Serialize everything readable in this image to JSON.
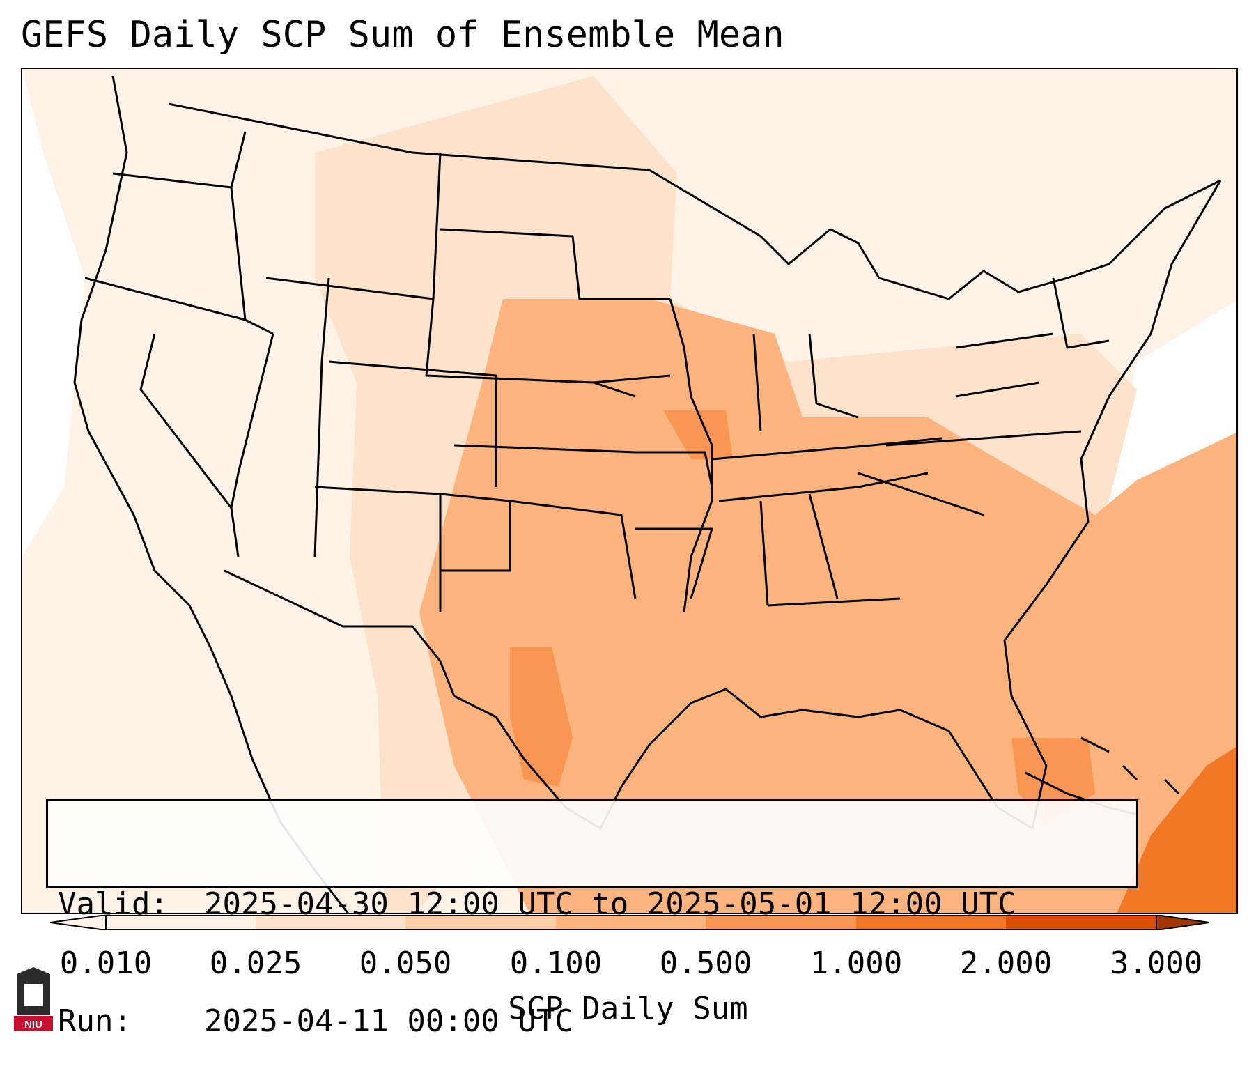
{
  "title": "GEFS Daily SCP Sum of Ensemble Mean",
  "valid_box": {
    "valid_key": "Valid:",
    "valid_value": "2025-04-30 12:00 UTC to 2025-05-01 12:00 UTC",
    "run_key": "Run:",
    "run_value": "2025-04-11 00:00 UTC"
  },
  "colorbar": {
    "title": "SCP Daily Sum",
    "tick_labels": [
      "0.010",
      "0.025",
      "0.050",
      "0.100",
      "0.500",
      "1.000",
      "2.000",
      "3.000"
    ],
    "colors": [
      "#fff3e8",
      "#fde3cc",
      "#fdd0a9",
      "#fcb47f",
      "#f99653",
      "#f07826",
      "#dc4e02",
      "#a53603"
    ]
  },
  "logo": {
    "text": "NIU",
    "colors": {
      "dark": "#2b2b2b",
      "red": "#c8102e"
    }
  },
  "map": {
    "colors": {
      "very_light": "#fff3e8",
      "light": "#fde3cc",
      "mid_light": "#fdd0a9",
      "mid": "#fcb47f",
      "orange": "#f99653",
      "dark_orange": "#f07826"
    }
  }
}
